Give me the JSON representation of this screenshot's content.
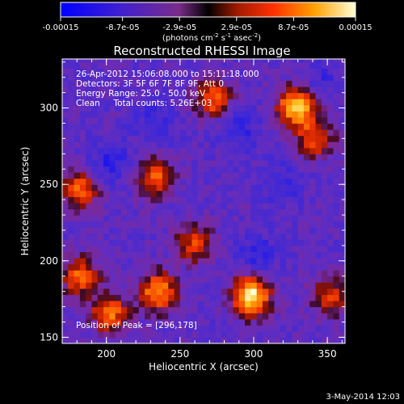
{
  "chart_data": {
    "type": "heatmap",
    "title": "Reconstructed RHESSI Image",
    "xlabel": "Heliocentric X (arcsec)",
    "ylabel": "Heliocentric Y (arcsec)",
    "xlim": [
      170,
      362
    ],
    "ylim": [
      146,
      332
    ],
    "x_ticks": [
      "200",
      "250",
      "300",
      "350"
    ],
    "y_ticks": [
      "150",
      "200",
      "250",
      "300"
    ],
    "colorbar": {
      "min": -0.00015,
      "max": 0.00015,
      "ticks": [
        "-0.00015",
        "-8.7e-05",
        "-2.9e-05",
        "2.9e-05",
        "8.7e-05",
        "0.00015"
      ],
      "unit_base": "(photons cm",
      "unit_exp1": "-2",
      "unit_mid": " s",
      "unit_exp2": "-1",
      "unit_mid2": " asec",
      "unit_exp3": "-2",
      "unit_end": ")"
    },
    "annotations": {
      "time_range": "26-Apr-2012 15:06:08.000 to 15:11:18.000",
      "detectors": "Detectors: 3F 5F 6F 7F 8F 9F, Att 0",
      "energy": "Energy Range: 25.0 - 50.0 keV",
      "clean": "Clean     Total counts: 5.26E+03",
      "peak": "Position of Peak = [296,178]"
    },
    "peak_position": [
      296,
      178
    ],
    "hotspots": [
      {
        "x": 296,
        "y": 175,
        "value": 0.00015
      },
      {
        "x": 327,
        "y": 299,
        "value": 0.00013
      },
      {
        "x": 233,
        "y": 178,
        "value": 0.0001
      },
      {
        "x": 200,
        "y": 164,
        "value": 8e-05
      },
      {
        "x": 231,
        "y": 253,
        "value": 7e-05
      },
      {
        "x": 180,
        "y": 245,
        "value": 7e-05
      },
      {
        "x": 180,
        "y": 188,
        "value": 7e-05
      },
      {
        "x": 270,
        "y": 304,
        "value": 7e-05
      },
      {
        "x": 340,
        "y": 278,
        "value": 6e-05
      },
      {
        "x": 258,
        "y": 210,
        "value": 5e-05
      },
      {
        "x": 350,
        "y": 175,
        "value": 5e-05
      }
    ],
    "coldspots": [
      {
        "x": 200,
        "y": 262,
        "value": -9e-05
      },
      {
        "x": 287,
        "y": 284,
        "value": -8e-05
      },
      {
        "x": 316,
        "y": 248,
        "value": -7e-05
      },
      {
        "x": 300,
        "y": 202,
        "value": -7e-05
      },
      {
        "x": 343,
        "y": 316,
        "value": -6e-05
      },
      {
        "x": 232,
        "y": 290,
        "value": -6e-05
      }
    ]
  },
  "footer": {
    "date": "3-May-2014 12:03"
  }
}
